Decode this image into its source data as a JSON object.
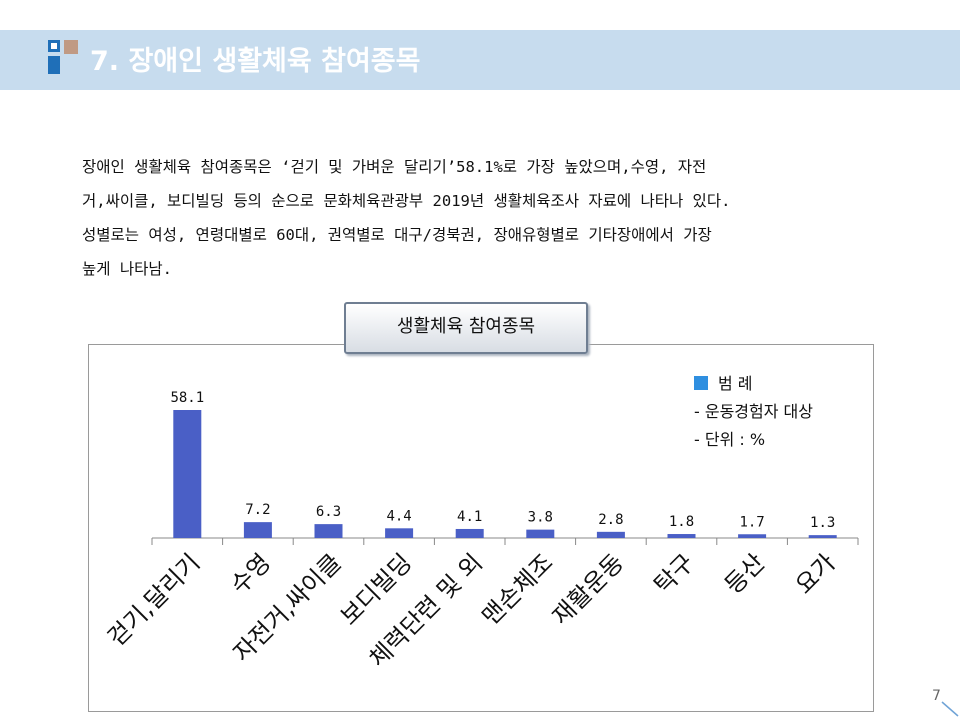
{
  "header": {
    "title": "7. 장애인 생활체육 참여종목"
  },
  "body_text": {
    "lines": [
      "장애인 생활체육 참여종목은 ‘걷기 및 가벼운 달리기’58.1%로 가장 높았으며,수영, 자전",
      "거,싸이클, 보디빌딩 등의 순으로 문화체육관광부 2019년 생활체육조사 자료에 나타나 있다.",
      "성별로는 여성, 연령대별로 60대, 권역별로 대구/경북권, 장애유형별로 기타장애에서 가장",
      "높게 나타남."
    ]
  },
  "chart_title": "생활체육 참여종목",
  "legend": {
    "title": "범 례",
    "note1": "- 운동경험자 대상",
    "note2": "- 단위 : %"
  },
  "colors": {
    "bar": "#4a5fc6",
    "header_band": "#c7dcee",
    "legend_swatch": "#2f8fe0"
  },
  "chart_data": {
    "type": "bar",
    "categories": [
      "걷기,달리기",
      "수영",
      "자전거,싸이클",
      "보디빌딩",
      "체력단련 및 외",
      "맨손체조",
      "재활운동",
      "탁구",
      "등산",
      "요가"
    ],
    "values": [
      58.1,
      7.2,
      6.3,
      4.4,
      4.1,
      3.8,
      2.8,
      1.8,
      1.7,
      1.3
    ],
    "data_labels": [
      "58.1",
      "7.2",
      "6.3",
      "4.4",
      "4.1",
      "3.8",
      "2.8",
      "1.8",
      "1.7",
      "1.3"
    ],
    "title": "생활체육 참여종목",
    "xlabel": "",
    "ylabel": "",
    "ylim": [
      0,
      58.1
    ],
    "grid": false,
    "legend_position": "top-right"
  },
  "page_number": "7"
}
